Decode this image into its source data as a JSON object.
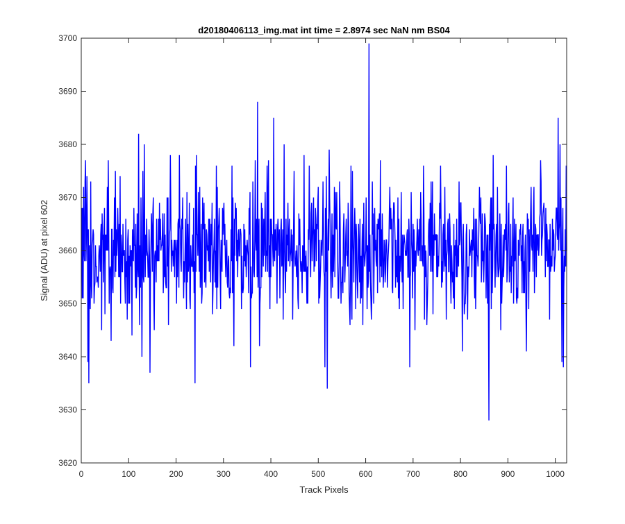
{
  "chart_data": {
    "type": "line",
    "title": "d20180406113_img.mat int time = 2.8974 sec  NaN nm BS04",
    "xlabel": "Track Pixels",
    "ylabel": "Signal (ADU) at pixel 602",
    "xlim": [
      0,
      1024
    ],
    "ylim": [
      3620,
      3700
    ],
    "xticks": [
      0,
      100,
      200,
      300,
      400,
      500,
      600,
      700,
      800,
      900,
      1000
    ],
    "yticks": [
      3620,
      3630,
      3640,
      3650,
      3660,
      3670,
      3680,
      3690,
      3700
    ],
    "grid": false,
    "legend": "none",
    "line_color": "#0000ff",
    "series": [
      {
        "x_start": 1,
        "x_step": 1,
        "noise_mean": 3660,
        "noise_std": 6,
        "clip": [
          3640,
          3678
        ],
        "seed": 602,
        "notable_points": [
          {
            "x": 5,
            "y": 3672
          },
          {
            "x": 14,
            "y": 3639
          },
          {
            "x": 16,
            "y": 3635
          },
          {
            "x": 57,
            "y": 3677
          },
          {
            "x": 107,
            "y": 3644
          },
          {
            "x": 121,
            "y": 3682
          },
          {
            "x": 128,
            "y": 3640
          },
          {
            "x": 133,
            "y": 3680
          },
          {
            "x": 145,
            "y": 3637
          },
          {
            "x": 188,
            "y": 3678
          },
          {
            "x": 240,
            "y": 3635
          },
          {
            "x": 241,
            "y": 3676
          },
          {
            "x": 285,
            "y": 3676
          },
          {
            "x": 318,
            "y": 3676
          },
          {
            "x": 322,
            "y": 3642
          },
          {
            "x": 357,
            "y": 3638
          },
          {
            "x": 367,
            "y": 3677
          },
          {
            "x": 372,
            "y": 3688
          },
          {
            "x": 376,
            "y": 3642
          },
          {
            "x": 392,
            "y": 3676
          },
          {
            "x": 406,
            "y": 3685
          },
          {
            "x": 428,
            "y": 3680
          },
          {
            "x": 470,
            "y": 3678
          },
          {
            "x": 514,
            "y": 3638
          },
          {
            "x": 519,
            "y": 3634
          },
          {
            "x": 523,
            "y": 3679
          },
          {
            "x": 607,
            "y": 3699
          },
          {
            "x": 631,
            "y": 3677
          },
          {
            "x": 693,
            "y": 3638
          },
          {
            "x": 758,
            "y": 3676
          },
          {
            "x": 804,
            "y": 3641
          },
          {
            "x": 860,
            "y": 3628
          },
          {
            "x": 897,
            "y": 3676
          },
          {
            "x": 939,
            "y": 3641
          },
          {
            "x": 969,
            "y": 3677
          },
          {
            "x": 1006,
            "y": 3685
          },
          {
            "x": 1010,
            "y": 3680
          },
          {
            "x": 1014,
            "y": 3639
          },
          {
            "x": 1017,
            "y": 3638
          },
          {
            "x": 1023,
            "y": 3676
          }
        ]
      }
    ]
  }
}
